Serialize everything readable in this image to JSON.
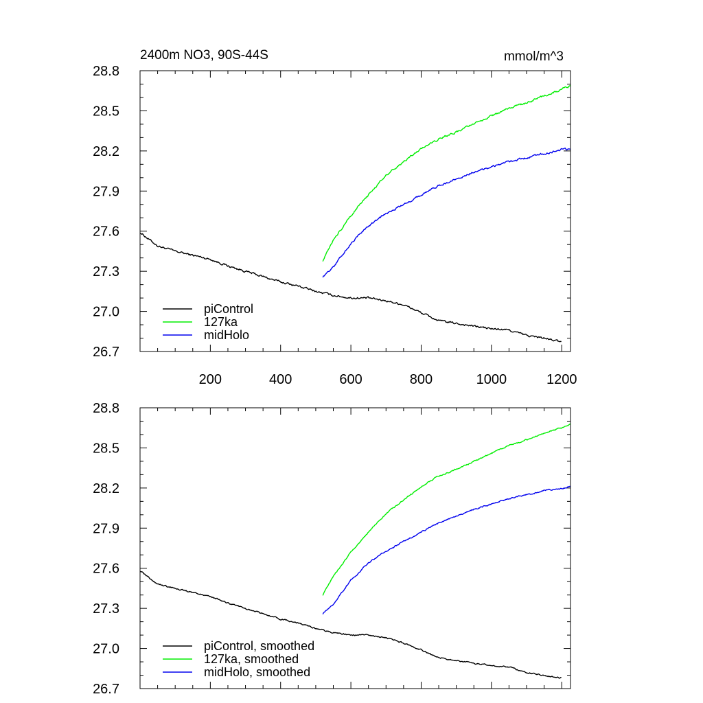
{
  "chart_data": [
    {
      "type": "line",
      "title_left": "2400m NO3, 90S-44S",
      "title_right": "mmol/m^3",
      "xlim": [
        0,
        1225
      ],
      "ylim": [
        26.7,
        28.8
      ],
      "y_ticks": [
        "28.8",
        "28.5",
        "28.2",
        "27.9",
        "27.6",
        "27.3",
        "27.0",
        "26.7"
      ],
      "x_ticks": [
        "200",
        "400",
        "600",
        "800",
        "1000",
        "1200"
      ],
      "legend_position": "bottom-left",
      "series": [
        {
          "name": "piControl",
          "color": "#000000",
          "x": [
            1,
            20,
            50,
            100,
            150,
            200,
            250,
            300,
            350,
            400,
            450,
            500,
            550,
            600,
            650,
            700,
            750,
            800,
            850,
            900,
            950,
            1000,
            1050,
            1100,
            1150,
            1200
          ],
          "y": [
            27.59,
            27.55,
            27.49,
            27.45,
            27.42,
            27.39,
            27.34,
            27.3,
            27.26,
            27.22,
            27.19,
            27.15,
            27.12,
            27.1,
            27.1,
            27.08,
            27.05,
            26.99,
            26.93,
            26.91,
            26.89,
            26.87,
            26.86,
            26.82,
            26.8,
            26.77
          ]
        },
        {
          "name": "127ka",
          "color": "#00ee00",
          "x": [
            520,
            550,
            600,
            650,
            700,
            750,
            800,
            850,
            900,
            950,
            1000,
            1050,
            1100,
            1150,
            1200,
            1225
          ],
          "y": [
            27.38,
            27.53,
            27.72,
            27.87,
            28.02,
            28.12,
            28.22,
            28.29,
            28.34,
            28.4,
            28.46,
            28.52,
            28.56,
            28.61,
            28.66,
            28.69
          ]
        },
        {
          "name": "midHolo",
          "color": "#0000ee",
          "x": [
            520,
            550,
            600,
            650,
            700,
            750,
            800,
            850,
            900,
            950,
            1000,
            1050,
            1100,
            1150,
            1200,
            1225
          ],
          "y": [
            27.26,
            27.33,
            27.51,
            27.64,
            27.73,
            27.8,
            27.87,
            27.94,
            27.99,
            28.04,
            28.08,
            28.12,
            28.15,
            28.18,
            28.21,
            28.21
          ]
        }
      ]
    },
    {
      "type": "line",
      "xlim": [
        0,
        1225
      ],
      "ylim": [
        26.7,
        28.8
      ],
      "y_ticks": [
        "28.8",
        "28.5",
        "28.2",
        "27.9",
        "27.6",
        "27.3",
        "27.0",
        "26.7"
      ],
      "legend_position": "bottom-left",
      "series": [
        {
          "name": "piControl, smoothed",
          "color": "#000000",
          "x": [
            1,
            20,
            50,
            100,
            150,
            200,
            250,
            300,
            350,
            400,
            450,
            500,
            550,
            600,
            650,
            700,
            750,
            800,
            850,
            900,
            950,
            1000,
            1050,
            1100,
            1150,
            1200
          ],
          "y": [
            27.58,
            27.54,
            27.48,
            27.45,
            27.42,
            27.39,
            27.34,
            27.3,
            27.26,
            27.22,
            27.19,
            27.15,
            27.12,
            27.1,
            27.1,
            27.08,
            27.04,
            26.99,
            26.93,
            26.91,
            26.89,
            26.87,
            26.86,
            26.82,
            26.8,
            26.78
          ]
        },
        {
          "name": "127ka, smoothed",
          "color": "#00ee00",
          "x": [
            520,
            550,
            600,
            650,
            700,
            750,
            800,
            850,
            900,
            950,
            1000,
            1050,
            1100,
            1150,
            1200,
            1225
          ],
          "y": [
            27.4,
            27.54,
            27.72,
            27.87,
            28.01,
            28.11,
            28.21,
            28.29,
            28.34,
            28.4,
            28.46,
            28.52,
            28.56,
            28.61,
            28.65,
            28.68
          ]
        },
        {
          "name": "midHolo, smoothed",
          "color": "#0000ee",
          "x": [
            520,
            550,
            600,
            650,
            700,
            750,
            800,
            850,
            900,
            950,
            1000,
            1050,
            1100,
            1150,
            1200,
            1225
          ],
          "y": [
            27.26,
            27.33,
            27.51,
            27.64,
            27.73,
            27.8,
            27.87,
            27.94,
            27.99,
            28.04,
            28.08,
            28.12,
            28.15,
            28.18,
            28.2,
            28.21
          ]
        }
      ]
    }
  ]
}
